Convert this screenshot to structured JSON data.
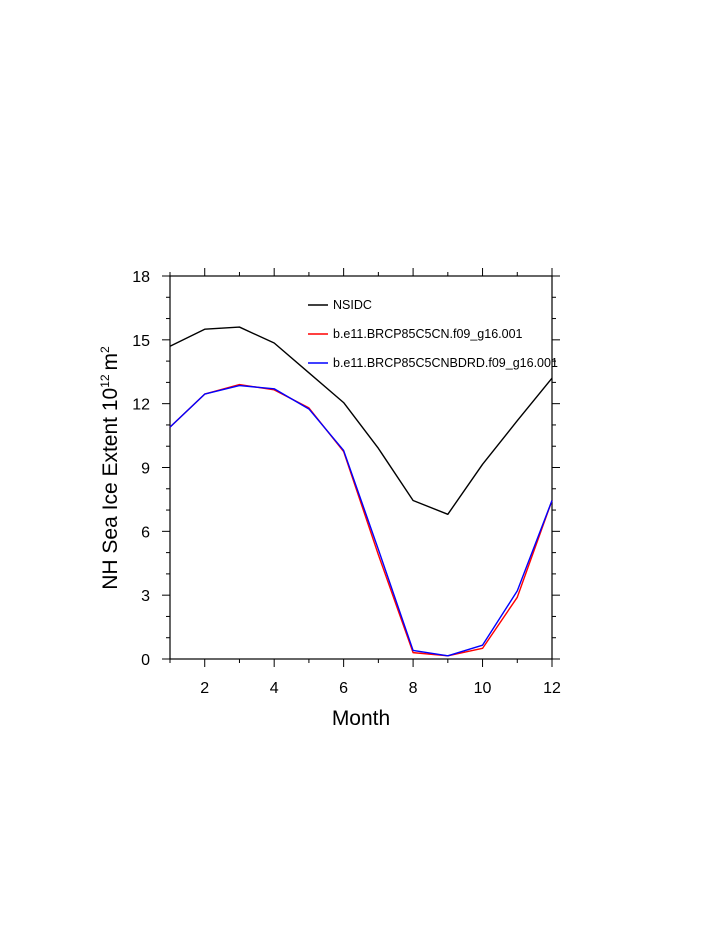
{
  "chart_data": {
    "type": "line",
    "title": "",
    "xlabel": "Month",
    "ylabel": {
      "main": "NH Sea Ice Extent 10",
      "exponent": "12",
      "unit": "m",
      "unit_exponent": "2"
    },
    "xlim": [
      1,
      12
    ],
    "ylim": [
      0,
      18
    ],
    "xticks": [
      2,
      4,
      6,
      8,
      10,
      12
    ],
    "yticks": [
      0,
      3,
      6,
      9,
      12,
      15,
      18
    ],
    "grid": false,
    "legend_position": "top-right",
    "x": [
      1,
      2,
      3,
      4,
      5,
      6,
      7,
      8,
      9,
      10,
      11,
      12
    ],
    "series": [
      {
        "name": "NSIDC",
        "color": "#000000",
        "values": [
          14.7,
          15.5,
          15.6,
          14.85,
          13.45,
          12.05,
          9.9,
          7.45,
          6.8,
          9.15,
          11.2,
          13.2
        ]
      },
      {
        "name": "b.e11.BRCP85C5CN.f09_g16.001",
        "color": "#ff0000",
        "values": [
          10.9,
          12.45,
          12.9,
          12.65,
          11.8,
          9.75,
          4.9,
          0.3,
          0.15,
          0.5,
          2.9,
          7.45
        ]
      },
      {
        "name": "b.e11.BRCP85C5CNBDRD.f09_g16.001",
        "color": "#0000ff",
        "values": [
          10.9,
          12.45,
          12.85,
          12.7,
          11.75,
          9.8,
          5.15,
          0.4,
          0.15,
          0.65,
          3.2,
          7.45
        ]
      }
    ]
  }
}
